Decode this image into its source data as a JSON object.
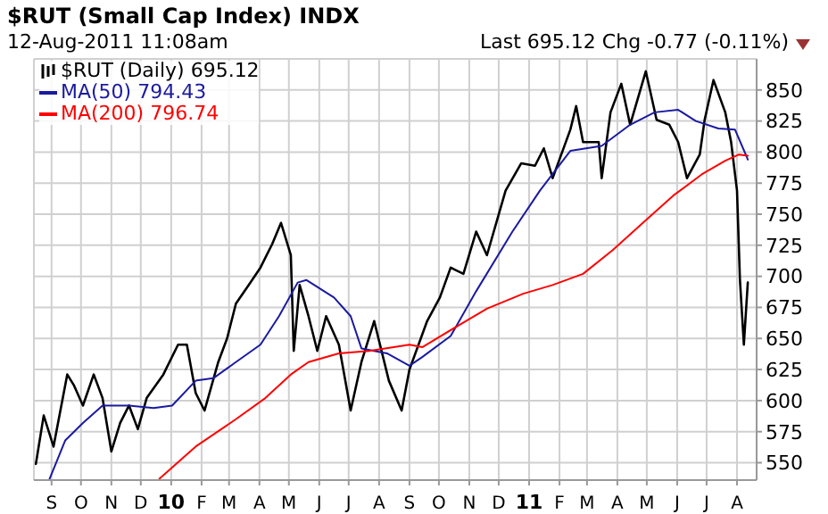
{
  "chart_data": {
    "type": "line",
    "title": "$RUT (Small Cap Index) INDX",
    "subtitle": "12-Aug-2011 11:08am",
    "annotations": [
      "Last 695.12 Chg -0.77 (-0.11%)"
    ],
    "legend": "top left",
    "grid": true,
    "line_style": "solid",
    "marker": "none",
    "xlim": [
      "2009-08-14",
      "2011-08-21"
    ],
    "xticks": [
      {
        "value": "2009-09-01",
        "label": "S"
      },
      {
        "value": "2009-10-01",
        "label": "O"
      },
      {
        "value": "2009-11-01",
        "label": "N"
      },
      {
        "value": "2009-12-01",
        "label": "D"
      },
      {
        "value": "2010-01-01",
        "label": "10"
      },
      {
        "value": "2010-02-01",
        "label": "F"
      },
      {
        "value": "2010-03-01",
        "label": "M"
      },
      {
        "value": "2010-04-01",
        "label": "A"
      },
      {
        "value": "2010-05-01",
        "label": "M"
      },
      {
        "value": "2010-06-01",
        "label": "J"
      },
      {
        "value": "2010-07-01",
        "label": "J"
      },
      {
        "value": "2010-08-01",
        "label": "A"
      },
      {
        "value": "2010-09-01",
        "label": "S"
      },
      {
        "value": "2010-10-01",
        "label": "O"
      },
      {
        "value": "2010-11-01",
        "label": "N"
      },
      {
        "value": "2010-12-01",
        "label": "D"
      },
      {
        "value": "2011-01-01",
        "label": "11"
      },
      {
        "value": "2011-02-01",
        "label": "F"
      },
      {
        "value": "2011-03-01",
        "label": "M"
      },
      {
        "value": "2011-04-01",
        "label": "A"
      },
      {
        "value": "2011-05-01",
        "label": "M"
      },
      {
        "value": "2011-06-01",
        "label": "J"
      },
      {
        "value": "2011-07-01",
        "label": "J"
      },
      {
        "value": "2011-08-01",
        "label": "A"
      }
    ],
    "ylim": [
      536,
      875
    ],
    "yticks": [
      550,
      575,
      600,
      625,
      650,
      675,
      700,
      725,
      750,
      775,
      800,
      825,
      850
    ],
    "series": [
      {
        "name": "$RUT (Daily) 695.12",
        "color": "#000000",
        "x": [
          "2009-08-16",
          "2009-08-24",
          "2009-09-03",
          "2009-09-17",
          "2009-09-24",
          "2009-10-03",
          "2009-10-14",
          "2009-10-23",
          "2009-11-01",
          "2009-11-10",
          "2009-11-19",
          "2009-11-28",
          "2009-12-07",
          "2009-12-24",
          "2010-01-08",
          "2010-01-17",
          "2010-01-26",
          "2010-02-04",
          "2010-02-18",
          "2010-02-27",
          "2010-03-08",
          "2010-03-21",
          "2010-04-02",
          "2010-04-14",
          "2010-04-23",
          "2010-05-03",
          "2010-05-06",
          "2010-05-12",
          "2010-05-21",
          "2010-05-30",
          "2010-06-08",
          "2010-06-21",
          "2010-07-03",
          "2010-07-14",
          "2010-07-27",
          "2010-08-11",
          "2010-08-24",
          "2010-09-01",
          "2010-09-19",
          "2010-10-02",
          "2010-10-13",
          "2010-10-26",
          "2010-11-08",
          "2010-11-19",
          "2010-12-08",
          "2010-12-24",
          "2011-01-07",
          "2011-01-16",
          "2011-01-25",
          "2011-02-12",
          "2011-02-18",
          "2011-02-25",
          "2011-03-13",
          "2011-03-16",
          "2011-03-25",
          "2011-04-05",
          "2011-04-14",
          "2011-04-30",
          "2011-05-11",
          "2011-05-24",
          "2011-06-02",
          "2011-06-11",
          "2011-06-24",
          "2011-06-29",
          "2011-07-08",
          "2011-07-20",
          "2011-07-26",
          "2011-08-01",
          "2011-08-04",
          "2011-08-08",
          "2011-08-12"
        ],
        "values": [
          549,
          588,
          563,
          621,
          612,
          596,
          621,
          602,
          559,
          582,
          596,
          577,
          602,
          621,
          645,
          645,
          606,
          592,
          631,
          650,
          678,
          693,
          707,
          726,
          743,
          717,
          640,
          693,
          668,
          640,
          668,
          645,
          592,
          631,
          664,
          616,
          592,
          625,
          664,
          683,
          707,
          702,
          736,
          717,
          769,
          791,
          789,
          803,
          779,
          818,
          837,
          808,
          808,
          779,
          832,
          855,
          822,
          865,
          826,
          822,
          808,
          779,
          798,
          826,
          858,
          832,
          808,
          769,
          697,
          645,
          695
        ]
      },
      {
        "name": "MA(50) 794.43",
        "color": "#1a1aa0",
        "x": [
          "2009-08-30",
          "2009-09-15",
          "2009-10-03",
          "2009-10-23",
          "2009-11-19",
          "2009-12-14",
          "2010-01-02",
          "2010-01-26",
          "2010-02-13",
          "2010-03-08",
          "2010-04-02",
          "2010-04-21",
          "2010-05-10",
          "2010-05-19",
          "2010-06-16",
          "2010-07-03",
          "2010-07-14",
          "2010-08-09",
          "2010-09-01",
          "2010-09-14",
          "2010-10-13",
          "2010-11-08",
          "2010-12-15",
          "2011-01-12",
          "2011-02-12",
          "2011-03-16",
          "2011-04-14",
          "2011-05-09",
          "2011-06-02",
          "2011-06-20",
          "2011-07-13",
          "2011-07-30",
          "2011-08-11",
          "2011-08-12"
        ],
        "values": [
          537,
          568,
          582,
          596,
          596,
          594,
          596,
          616,
          618,
          631,
          645,
          668,
          695,
          697,
          683,
          668,
          642,
          638,
          628,
          635,
          652,
          688,
          736,
          769,
          801,
          805,
          822,
          832,
          834,
          825,
          819,
          818,
          796,
          794
        ]
      },
      {
        "name": "MA(200) 796.74",
        "color": "#ff0000",
        "x": [
          "2009-12-20",
          "2010-01-26",
          "2010-03-08",
          "2010-04-07",
          "2010-05-03",
          "2010-05-21",
          "2010-06-21",
          "2010-07-22",
          "2010-09-01",
          "2010-09-14",
          "2010-10-20",
          "2010-11-19",
          "2010-12-26",
          "2011-01-25",
          "2011-02-25",
          "2011-03-27",
          "2011-04-27",
          "2011-05-28",
          "2011-06-26",
          "2011-07-20",
          "2011-08-03",
          "2011-08-12"
        ],
        "values": [
          537,
          563,
          585,
          602,
          621,
          631,
          638,
          640,
          645,
          643,
          660,
          674,
          686,
          693,
          702,
          721,
          743,
          765,
          782,
          793,
          798,
          797
        ]
      }
    ]
  }
}
